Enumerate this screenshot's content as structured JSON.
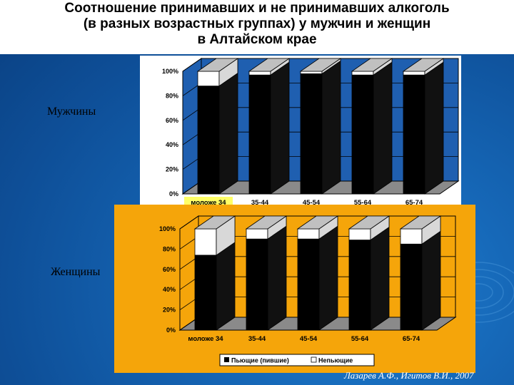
{
  "title": {
    "line1": "Соотношение принимавших и не принимавших алкоголь",
    "line2": "(в разных возрастных группах) у мужчин и женщин",
    "line3": "в Алтайском крае"
  },
  "labels": {
    "men": "Мужчины",
    "women": "Женщины"
  },
  "author": "Лазарев А.Ф., Игитов В.И., 2007",
  "colors": {
    "background": "#1668b8",
    "women_panel": "#f5a50a",
    "men_panel": "#ffffff",
    "drinking": "#000000",
    "non_drinking": "#ffffff"
  },
  "chart_data": [
    {
      "type": "bar",
      "stacked": true,
      "panel": "Мужчины",
      "categories": [
        "моложе 34",
        "35-44",
        "45-54",
        "55-64",
        "65-74"
      ],
      "series": [
        {
          "name": "Пьющие (пившие)",
          "values": [
            88,
            97,
            98,
            97,
            97
          ]
        },
        {
          "name": "Непьющие",
          "values": [
            12,
            3,
            2,
            3,
            3
          ]
        }
      ],
      "yticks": [
        "0%",
        "20%",
        "40%",
        "60%",
        "80%",
        "100%"
      ],
      "ylim": [
        0,
        100
      ]
    },
    {
      "type": "bar",
      "stacked": true,
      "panel": "Женщины",
      "categories": [
        "моложе 34",
        "35-44",
        "45-54",
        "55-64",
        "65-74"
      ],
      "series": [
        {
          "name": "Пьющие (пившие)",
          "values": [
            74,
            90,
            90,
            89,
            85
          ]
        },
        {
          "name": "Непьющие",
          "values": [
            26,
            10,
            10,
            11,
            15
          ]
        }
      ],
      "yticks": [
        "0%",
        "20%",
        "40%",
        "60%",
        "80%",
        "100%"
      ],
      "ylim": [
        0,
        100
      ],
      "legend": "bottom"
    }
  ]
}
